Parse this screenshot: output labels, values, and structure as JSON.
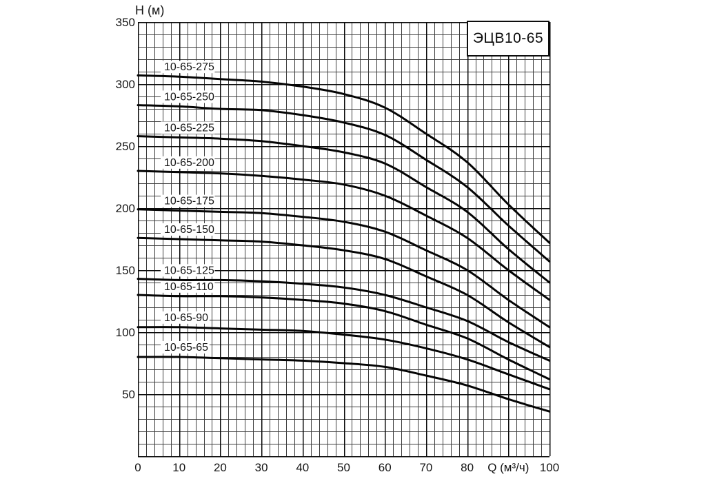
{
  "chart_data": {
    "type": "line",
    "title": "ЭЦВ10-65",
    "xlabel": "Q (м³/ч)",
    "ylabel": "H (м)",
    "xlim": [
      0,
      100
    ],
    "ylim": [
      0,
      350
    ],
    "x_ticks": [
      0,
      10,
      20,
      30,
      40,
      50,
      60,
      70,
      80,
      100
    ],
    "y_ticks": [
      50,
      100,
      150,
      200,
      250,
      300,
      350
    ],
    "xlabel_at_q": 90,
    "grid": {
      "show": true,
      "minor_x_step": 2,
      "minor_y_step": 10,
      "major_x_step": 10,
      "major_y_step": 50
    },
    "legend_position": "labels-on-curves",
    "x": [
      0,
      10,
      20,
      30,
      40,
      50,
      60,
      70,
      80,
      90,
      100
    ],
    "series": [
      {
        "name": "10-65-275",
        "values": [
          307,
          306,
          304,
          302,
          298,
          292,
          281,
          260,
          237,
          203,
          172
        ]
      },
      {
        "name": "10-65-250",
        "values": [
          283,
          282,
          280,
          279,
          275,
          269,
          259,
          239,
          217,
          186,
          157
        ]
      },
      {
        "name": "10-65-225",
        "values": [
          258,
          257,
          256,
          254,
          250,
          245,
          236,
          217,
          197,
          167,
          140
        ]
      },
      {
        "name": "10-65-200",
        "values": [
          230,
          229,
          228,
          226,
          223,
          219,
          210,
          194,
          176,
          150,
          126
        ]
      },
      {
        "name": "10-65-175",
        "values": [
          199,
          198,
          197,
          196,
          193,
          189,
          181,
          166,
          150,
          126,
          104
        ]
      },
      {
        "name": "10-65-150",
        "values": [
          176,
          175,
          174,
          173,
          170,
          166,
          159,
          145,
          130,
          108,
          88
        ]
      },
      {
        "name": "10-65-125",
        "values": [
          143,
          142,
          142,
          141,
          139,
          136,
          130,
          120,
          109,
          92,
          77
        ]
      },
      {
        "name": "10-65-110",
        "values": [
          130,
          129,
          129,
          128,
          126,
          123,
          117,
          106,
          95,
          78,
          62
        ]
      },
      {
        "name": "10-65-90",
        "values": [
          104,
          104,
          103,
          102,
          101,
          98,
          94,
          87,
          78,
          66,
          54
        ]
      },
      {
        "name": "10-65-65",
        "values": [
          80,
          80,
          79,
          78,
          77,
          75,
          72,
          65,
          57,
          46,
          36
        ]
      }
    ],
    "colors": {
      "curve": "#050505",
      "grid_minor": "#3c3c3c",
      "grid_major": "#0a0a0a",
      "text": "#141414",
      "background": "#ffffff"
    }
  }
}
